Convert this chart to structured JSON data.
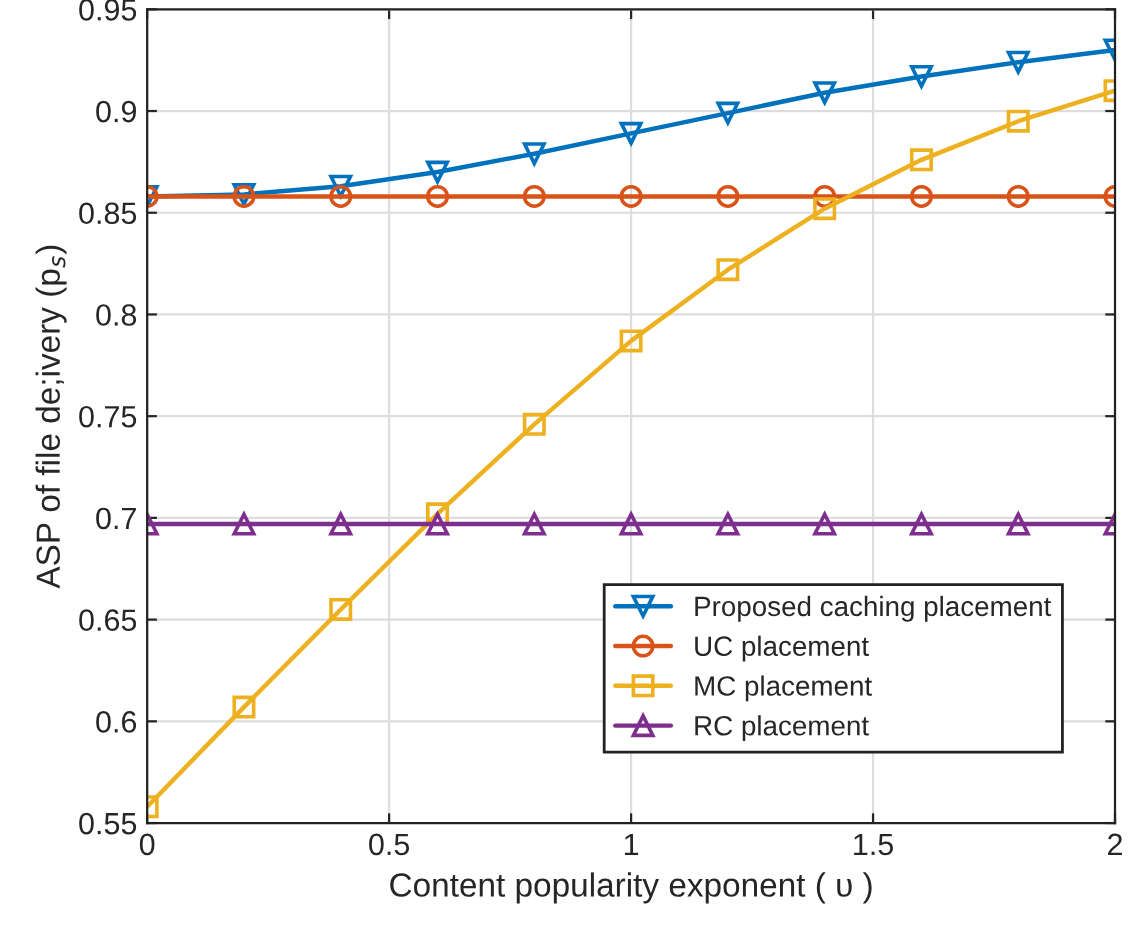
{
  "chart_data": {
    "type": "line",
    "xlabel": "Content popularity exponent ( υ )",
    "ylabel": "ASP of file de;ivery (p$_{s}$)",
    "x": [
      0,
      0.2,
      0.4,
      0.6,
      0.8,
      1.0,
      1.2,
      1.4,
      1.6,
      1.8,
      2.0
    ],
    "series": [
      {
        "name": "Proposed caching placement",
        "color": "#0072bd",
        "marker": "triangle_down",
        "values": [
          0.858,
          0.859,
          0.863,
          0.87,
          0.879,
          0.889,
          0.899,
          0.909,
          0.917,
          0.924,
          0.93
        ]
      },
      {
        "name": "UC placement",
        "color": "#d95319",
        "marker": "circle",
        "values": [
          0.858,
          0.858,
          0.858,
          0.858,
          0.858,
          0.858,
          0.858,
          0.858,
          0.858,
          0.858,
          0.858
        ]
      },
      {
        "name": "MC placement",
        "color": "#edb120",
        "marker": "square",
        "values": [
          0.558,
          0.607,
          0.655,
          0.702,
          0.746,
          0.787,
          0.822,
          0.852,
          0.876,
          0.895,
          0.91
        ]
      },
      {
        "name": "RC placement",
        "color": "#7e2f8e",
        "marker": "triangle",
        "values": [
          0.697,
          0.697,
          0.697,
          0.697,
          0.697,
          0.697,
          0.697,
          0.697,
          0.697,
          0.697,
          0.697
        ]
      }
    ],
    "xlim": [
      0,
      2
    ],
    "xticks": [
      0,
      0.5,
      1,
      1.5,
      2
    ],
    "ylim": [
      0.55,
      0.95
    ],
    "yticks": [
      0.55,
      0.6,
      0.65,
      0.7,
      0.75,
      0.8,
      0.85,
      0.9,
      0.95
    ],
    "grid": true,
    "legend": "bottom right",
    "line_style": "solid"
  }
}
